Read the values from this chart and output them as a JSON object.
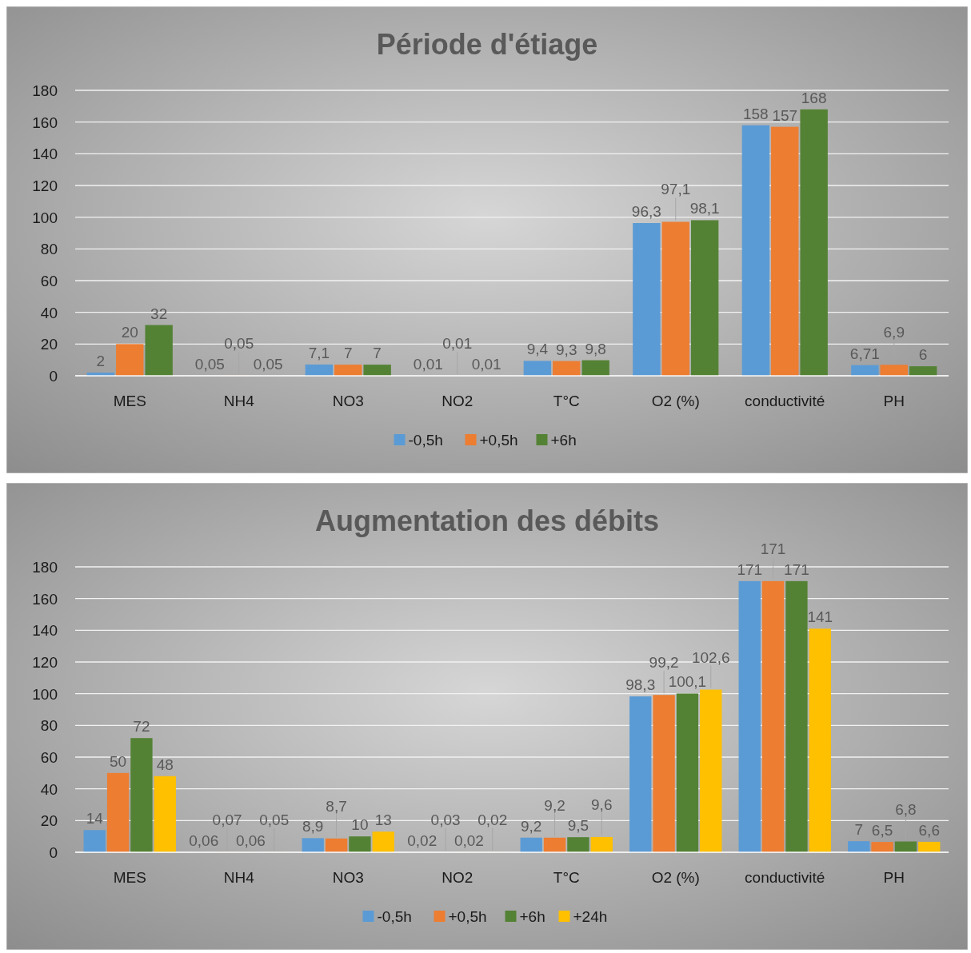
{
  "chart_data": [
    {
      "type": "bar",
      "title": "Période d'étiage",
      "categories": [
        "MES",
        "NH4",
        "NO3",
        "NO2",
        "T°C",
        "O2 (%)",
        "conductivité",
        "PH"
      ],
      "ylim": [
        0,
        180
      ],
      "yticks": [
        0,
        20,
        40,
        60,
        80,
        100,
        120,
        140,
        160,
        180
      ],
      "grid": "y",
      "legend": "bottom",
      "series": [
        {
          "name": "-0,5h",
          "color": "#5b9bd5",
          "values": [
            2,
            0.05,
            7.1,
            0.01,
            9.4,
            96.3,
            158,
            6.71
          ],
          "value_labels": [
            "2",
            "0,05",
            "7,1",
            "0,01",
            "9,4",
            "96,3",
            "158",
            "6,71"
          ]
        },
        {
          "name": "+0,5h",
          "color": "#ed7d31",
          "values": [
            20,
            0.05,
            7,
            0.01,
            9.3,
            97.1,
            157,
            6.9
          ],
          "value_labels": [
            "20",
            "0,05",
            "7",
            "0,01",
            "9,3",
            "97,1",
            "157",
            "6,9"
          ]
        },
        {
          "name": "+6h",
          "color": "#548235",
          "values": [
            32,
            0.05,
            7,
            0.01,
            9.8,
            98.1,
            168,
            6
          ],
          "value_labels": [
            "32",
            "0,05",
            "7",
            "0,01",
            "9,8",
            "98,1",
            "168",
            "6"
          ]
        }
      ]
    },
    {
      "type": "bar",
      "title": "Augmentation des débits",
      "categories": [
        "MES",
        "NH4",
        "NO3",
        "NO2",
        "T°C",
        "O2 (%)",
        "conductivité",
        "PH"
      ],
      "ylim": [
        0,
        180
      ],
      "yticks": [
        0,
        20,
        40,
        60,
        80,
        100,
        120,
        140,
        160,
        180
      ],
      "grid": "y",
      "legend": "bottom",
      "series": [
        {
          "name": "-0,5h",
          "color": "#5b9bd5",
          "values": [
            14,
            0.06,
            8.9,
            0.02,
            9.2,
            98.3,
            171,
            7
          ],
          "value_labels": [
            "14",
            "0,06",
            "8,9",
            "0,02",
            "9,2",
            "98,3",
            "171",
            "7"
          ]
        },
        {
          "name": "+0,5h",
          "color": "#ed7d31",
          "values": [
            50,
            0.07,
            8.7,
            0.03,
            9.2,
            99.2,
            171,
            6.5
          ],
          "value_labels": [
            "50",
            "0,07",
            "8,7",
            "0,03",
            "9,2",
            "99,2",
            "171",
            "6,5"
          ]
        },
        {
          "name": "+6h",
          "color": "#548235",
          "values": [
            72,
            0.06,
            10,
            0.02,
            9.5,
            100.1,
            171,
            6.8
          ],
          "value_labels": [
            "72",
            "0,06",
            "10",
            "0,02",
            "9,5",
            "100,1",
            "171",
            "6,8"
          ]
        },
        {
          "name": "+24h",
          "color": "#ffc000",
          "values": [
            48,
            0.05,
            13,
            0.02,
            9.6,
            102.6,
            141,
            6.6
          ],
          "value_labels": [
            "48",
            "0,05",
            "13",
            "0,02",
            "9,6",
            "102,6",
            "141",
            "6,6"
          ]
        }
      ]
    }
  ]
}
